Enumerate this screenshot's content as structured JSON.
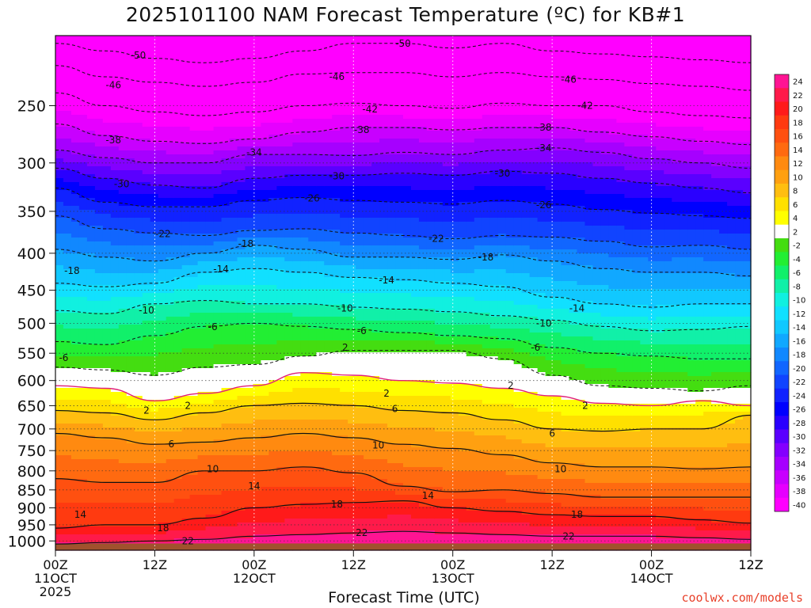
{
  "chart_data": {
    "type": "heatmap",
    "title": "2025101100 NAM Forecast Temperature (ºC) for KB#1",
    "xlabel": "Forecast Time (UTC)",
    "credit": "coolwx.com/models",
    "y_axis": {
      "ticks": [
        250,
        300,
        350,
        400,
        450,
        500,
        550,
        600,
        650,
        700,
        750,
        800,
        850,
        900,
        950,
        1000
      ],
      "range": [
        200,
        1030
      ],
      "scale": "log"
    },
    "x_axis": {
      "ticks": [
        {
          "hour": 0,
          "line1": "00Z",
          "line2": "11OCT",
          "line3": "2025"
        },
        {
          "hour": 12,
          "line1": "12Z",
          "line2": "",
          "line3": ""
        },
        {
          "hour": 24,
          "line1": "00Z",
          "line2": "12OCT",
          "line3": ""
        },
        {
          "hour": 36,
          "line1": "12Z",
          "line2": "",
          "line3": ""
        },
        {
          "hour": 48,
          "line1": "00Z",
          "line2": "13OCT",
          "line3": ""
        },
        {
          "hour": 60,
          "line1": "12Z",
          "line2": "",
          "line3": ""
        },
        {
          "hour": 72,
          "line1": "00Z",
          "line2": "14OCT",
          "line3": ""
        },
        {
          "hour": 84,
          "line1": "12Z",
          "line2": "",
          "line3": ""
        }
      ],
      "range": [
        0,
        84
      ]
    },
    "colorbar": {
      "levels": [
        24,
        22,
        20,
        18,
        16,
        14,
        12,
        10,
        8,
        6,
        4,
        2,
        -2,
        -4,
        -6,
        -8,
        -10,
        -12,
        -14,
        -16,
        -18,
        -20,
        -22,
        -24,
        -26,
        -28,
        -30,
        -32,
        -34,
        -36,
        -38,
        -40
      ],
      "bands": [
        {
          "lo": 22,
          "hi": 26,
          "color": "#ff1493"
        },
        {
          "lo": 20,
          "hi": 22,
          "color": "#ff1a4a"
        },
        {
          "lo": 18,
          "hi": 20,
          "color": "#ff1a1a"
        },
        {
          "lo": 16,
          "hi": 18,
          "color": "#ff3a10"
        },
        {
          "lo": 14,
          "hi": 16,
          "color": "#ff5010"
        },
        {
          "lo": 12,
          "hi": 14,
          "color": "#ff6a10"
        },
        {
          "lo": 10,
          "hi": 12,
          "color": "#ff8a10"
        },
        {
          "lo": 8,
          "hi": 10,
          "color": "#ffa010"
        },
        {
          "lo": 6,
          "hi": 8,
          "color": "#ffbe10"
        },
        {
          "lo": 4,
          "hi": 6,
          "color": "#ffe000"
        },
        {
          "lo": 2,
          "hi": 4,
          "color": "#ffff00"
        },
        {
          "lo": -2,
          "hi": 2,
          "color": "#ffffff"
        },
        {
          "lo": -4,
          "hi": -2,
          "color": "#44dd11"
        },
        {
          "lo": -6,
          "hi": -4,
          "color": "#22ee33"
        },
        {
          "lo": -8,
          "hi": -6,
          "color": "#11f06a"
        },
        {
          "lo": -10,
          "hi": -8,
          "color": "#11f0a8"
        },
        {
          "lo": -12,
          "hi": -10,
          "color": "#11f0e0"
        },
        {
          "lo": -14,
          "hi": -12,
          "color": "#11e0ff"
        },
        {
          "lo": -16,
          "hi": -14,
          "color": "#11c8ff"
        },
        {
          "lo": -18,
          "hi": -16,
          "color": "#11a8ff"
        },
        {
          "lo": -20,
          "hi": -18,
          "color": "#1188ff"
        },
        {
          "lo": -22,
          "hi": -20,
          "color": "#1166ff"
        },
        {
          "lo": -24,
          "hi": -22,
          "color": "#1144ff"
        },
        {
          "lo": -26,
          "hi": -24,
          "color": "#1122ff"
        },
        {
          "lo": -28,
          "hi": -26,
          "color": "#0000ff"
        },
        {
          "lo": -30,
          "hi": -28,
          "color": "#2a00ff"
        },
        {
          "lo": -32,
          "hi": -30,
          "color": "#5a00ff"
        },
        {
          "lo": -34,
          "hi": -32,
          "color": "#8400ff"
        },
        {
          "lo": -36,
          "hi": -34,
          "color": "#a600ff"
        },
        {
          "lo": -38,
          "hi": -36,
          "color": "#c800ff"
        },
        {
          "lo": -40,
          "hi": -38,
          "color": "#e600ff"
        },
        {
          "lo": -60,
          "hi": -40,
          "color": "#ff00ff"
        }
      ]
    },
    "contours": {
      "dashed_levels": [
        -50,
        -46,
        -42,
        -38,
        -34,
        -30,
        -26,
        -22,
        -18,
        -14,
        -10,
        -6,
        -2
      ],
      "solid_levels": [
        6,
        10,
        14,
        18,
        22
      ],
      "freezing_level_line": 2,
      "freezing_line_color": "#e0207a",
      "labels": [
        {
          "text": "-50",
          "hour": 10,
          "p": 213
        },
        {
          "text": "-50",
          "hour": 42,
          "p": 205
        },
        {
          "text": "-46",
          "hour": 7,
          "p": 234
        },
        {
          "text": "-46",
          "hour": 34,
          "p": 228
        },
        {
          "text": "-46",
          "hour": 62,
          "p": 230
        },
        {
          "text": "-42",
          "hour": 38,
          "p": 253
        },
        {
          "text": "-42",
          "hour": 64,
          "p": 250
        },
        {
          "text": "-38",
          "hour": 7,
          "p": 279
        },
        {
          "text": "-38",
          "hour": 37,
          "p": 270
        },
        {
          "text": "-38",
          "hour": 59,
          "p": 268
        },
        {
          "text": "-34",
          "hour": 24,
          "p": 290
        },
        {
          "text": "-34",
          "hour": 59,
          "p": 286
        },
        {
          "text": "-30",
          "hour": 8,
          "p": 321
        },
        {
          "text": "-30",
          "hour": 34,
          "p": 313
        },
        {
          "text": "-30",
          "hour": 54,
          "p": 310
        },
        {
          "text": "-26",
          "hour": 31,
          "p": 336
        },
        {
          "text": "-26",
          "hour": 59,
          "p": 343
        },
        {
          "text": "-22",
          "hour": 13,
          "p": 376
        },
        {
          "text": "-22",
          "hour": 46,
          "p": 382
        },
        {
          "text": "-18",
          "hour": 2,
          "p": 423
        },
        {
          "text": "-18",
          "hour": 23,
          "p": 388
        },
        {
          "text": "-18",
          "hour": 52,
          "p": 405
        },
        {
          "text": "-14",
          "hour": 20,
          "p": 421
        },
        {
          "text": "-14",
          "hour": 40,
          "p": 436
        },
        {
          "text": "-14",
          "hour": 63,
          "p": 477
        },
        {
          "text": "-10",
          "hour": 11,
          "p": 480
        },
        {
          "text": "-10",
          "hour": 35,
          "p": 477
        },
        {
          "text": "-10",
          "hour": 59,
          "p": 500
        },
        {
          "text": "-6",
          "hour": 1,
          "p": 558
        },
        {
          "text": "-6",
          "hour": 19,
          "p": 506
        },
        {
          "text": "-6",
          "hour": 37,
          "p": 512
        },
        {
          "text": "-6",
          "hour": 58,
          "p": 540
        },
        {
          "text": "2",
          "hour": 35,
          "p": 540
        },
        {
          "text": "2",
          "hour": 55,
          "p": 610
        },
        {
          "text": "2",
          "hour": 11,
          "p": 660
        },
        {
          "text": "2",
          "hour": 16,
          "p": 650
        },
        {
          "text": "2",
          "hour": 40,
          "p": 625
        },
        {
          "text": "2",
          "hour": 64,
          "p": 650
        },
        {
          "text": "6",
          "hour": 41,
          "p": 657
        },
        {
          "text": "6",
          "hour": 14,
          "p": 735
        },
        {
          "text": "6",
          "hour": 60,
          "p": 710
        },
        {
          "text": "10",
          "hour": 19,
          "p": 795
        },
        {
          "text": "10",
          "hour": 39,
          "p": 737
        },
        {
          "text": "10",
          "hour": 61,
          "p": 795
        },
        {
          "text": "14",
          "hour": 24,
          "p": 840
        },
        {
          "text": "14",
          "hour": 3,
          "p": 920
        },
        {
          "text": "14",
          "hour": 45,
          "p": 865
        },
        {
          "text": "18",
          "hour": 13,
          "p": 960
        },
        {
          "text": "18",
          "hour": 34,
          "p": 890
        },
        {
          "text": "18",
          "hour": 63,
          "p": 920
        },
        {
          "text": "22",
          "hour": 16,
          "p": 1000
        },
        {
          "text": "22",
          "hour": 37,
          "p": 974
        },
        {
          "text": "22",
          "hour": 62,
          "p": 985
        }
      ]
    },
    "profile_columns": [
      {
        "hour": 0,
        "levels": {
          "-50": 205,
          "-46": 220,
          "-42": 240,
          "-38": 265,
          "-34": 288,
          "-30": 305,
          "-26": 325,
          "-22": 355,
          "-18": 395,
          "-14": 440,
          "-10": 480,
          "-6": 530,
          "-2": 575,
          "2": 610,
          "6": 660,
          "10": 710,
          "14": 820,
          "18": 960,
          "22": 1010
        }
      },
      {
        "hour": 6,
        "levels": {
          "-50": 210,
          "-46": 228,
          "-42": 250,
          "-38": 275,
          "-34": 295,
          "-30": 315,
          "-26": 340,
          "-22": 370,
          "-18": 405,
          "-14": 445,
          "-10": 485,
          "-6": 535,
          "-2": 580,
          "2": 615,
          "6": 665,
          "10": 720,
          "14": 830,
          "18": 950,
          "22": 1005
        }
      },
      {
        "hour": 12,
        "levels": {
          "-50": 215,
          "-46": 232,
          "-42": 255,
          "-38": 280,
          "-34": 300,
          "-30": 322,
          "-26": 345,
          "-22": 375,
          "-18": 410,
          "-14": 440,
          "-10": 470,
          "-6": 520,
          "-2": 590,
          "2": 640,
          "6": 680,
          "10": 735,
          "14": 830,
          "18": 950,
          "22": 1000
        }
      },
      {
        "hour": 18,
        "levels": {
          "-50": 218,
          "-46": 235,
          "-42": 258,
          "-38": 282,
          "-34": 300,
          "-30": 325,
          "-26": 345,
          "-22": 378,
          "-18": 400,
          "-14": 425,
          "-10": 465,
          "-6": 505,
          "-2": 575,
          "2": 625,
          "6": 665,
          "10": 730,
          "14": 800,
          "18": 930,
          "22": 995
        }
      },
      {
        "hour": 24,
        "levels": {
          "-50": 215,
          "-46": 232,
          "-42": 255,
          "-38": 278,
          "-34": 292,
          "-30": 315,
          "-26": 338,
          "-22": 372,
          "-18": 390,
          "-14": 420,
          "-10": 470,
          "-6": 500,
          "-2": 570,
          "2": 610,
          "6": 650,
          "10": 720,
          "14": 800,
          "18": 900,
          "22": 985
        }
      },
      {
        "hour": 30,
        "levels": {
          "-50": 210,
          "-46": 226,
          "-42": 250,
          "-38": 272,
          "-34": 292,
          "-30": 312,
          "-26": 335,
          "-22": 370,
          "-18": 395,
          "-14": 425,
          "-10": 470,
          "-6": 505,
          "-2": 555,
          "2": 585,
          "6": 645,
          "10": 710,
          "14": 790,
          "18": 890,
          "22": 980
        }
      },
      {
        "hour": 36,
        "levels": {
          "-50": 205,
          "-46": 225,
          "-42": 248,
          "-38": 268,
          "-34": 293,
          "-30": 312,
          "-26": 338,
          "-22": 375,
          "-18": 405,
          "-14": 432,
          "-10": 475,
          "-6": 510,
          "-2": 545,
          "2": 590,
          "6": 650,
          "10": 720,
          "14": 805,
          "18": 885,
          "22": 975
        }
      },
      {
        "hour": 42,
        "levels": {
          "-50": 205,
          "-46": 225,
          "-42": 250,
          "-38": 268,
          "-34": 290,
          "-30": 310,
          "-26": 340,
          "-22": 378,
          "-18": 405,
          "-14": 435,
          "-10": 478,
          "-6": 515,
          "-2": 545,
          "2": 600,
          "6": 660,
          "10": 735,
          "14": 840,
          "18": 880,
          "22": 970
        }
      },
      {
        "hour": 48,
        "levels": {
          "-50": 208,
          "-46": 228,
          "-42": 252,
          "-38": 270,
          "-34": 292,
          "-30": 312,
          "-26": 342,
          "-22": 382,
          "-18": 408,
          "-14": 440,
          "-10": 482,
          "-6": 520,
          "-2": 545,
          "2": 605,
          "6": 665,
          "10": 745,
          "14": 855,
          "18": 900,
          "22": 975
        }
      },
      {
        "hour": 54,
        "levels": {
          "-50": 205,
          "-46": 225,
          "-42": 248,
          "-38": 268,
          "-34": 288,
          "-30": 308,
          "-26": 338,
          "-22": 378,
          "-18": 402,
          "-14": 445,
          "-10": 488,
          "-6": 525,
          "-2": 560,
          "2": 615,
          "6": 680,
          "10": 760,
          "14": 850,
          "18": 910,
          "22": 980
        }
      },
      {
        "hour": 60,
        "levels": {
          "-50": 210,
          "-46": 228,
          "-42": 250,
          "-38": 268,
          "-34": 286,
          "-30": 310,
          "-26": 342,
          "-22": 380,
          "-18": 410,
          "-14": 460,
          "-10": 495,
          "-6": 540,
          "-2": 590,
          "2": 630,
          "6": 700,
          "10": 780,
          "14": 860,
          "18": 920,
          "22": 985
        }
      },
      {
        "hour": 66,
        "levels": {
          "-50": 212,
          "-46": 230,
          "-42": 250,
          "-38": 272,
          "-34": 290,
          "-30": 315,
          "-26": 348,
          "-22": 385,
          "-18": 420,
          "-14": 470,
          "-10": 505,
          "-6": 550,
          "-2": 610,
          "2": 645,
          "6": 705,
          "10": 790,
          "14": 870,
          "18": 925,
          "22": 985
        }
      },
      {
        "hour": 72,
        "levels": {
          "-50": 214,
          "-46": 233,
          "-42": 255,
          "-38": 276,
          "-34": 296,
          "-30": 320,
          "-26": 352,
          "-22": 392,
          "-18": 425,
          "-14": 475,
          "-10": 512,
          "-6": 555,
          "-2": 615,
          "2": 650,
          "6": 700,
          "10": 790,
          "14": 870,
          "18": 925,
          "22": 985
        }
      },
      {
        "hour": 78,
        "levels": {
          "-50": 216,
          "-46": 235,
          "-42": 258,
          "-38": 280,
          "-34": 300,
          "-30": 325,
          "-26": 355,
          "-22": 390,
          "-18": 425,
          "-14": 470,
          "-10": 510,
          "-6": 560,
          "-2": 620,
          "2": 640,
          "6": 700,
          "10": 795,
          "14": 870,
          "18": 935,
          "22": 990
        }
      },
      {
        "hour": 84,
        "levels": {
          "-50": 218,
          "-46": 238,
          "-42": 260,
          "-38": 283,
          "-34": 305,
          "-30": 330,
          "-26": 358,
          "-22": 395,
          "-18": 430,
          "-14": 470,
          "-10": 505,
          "-6": 560,
          "-2": 610,
          "2": 650,
          "6": 670,
          "10": 790,
          "14": 870,
          "18": 945,
          "22": 995
        }
      }
    ],
    "ground_color": "#a0522d",
    "grid": true
  }
}
